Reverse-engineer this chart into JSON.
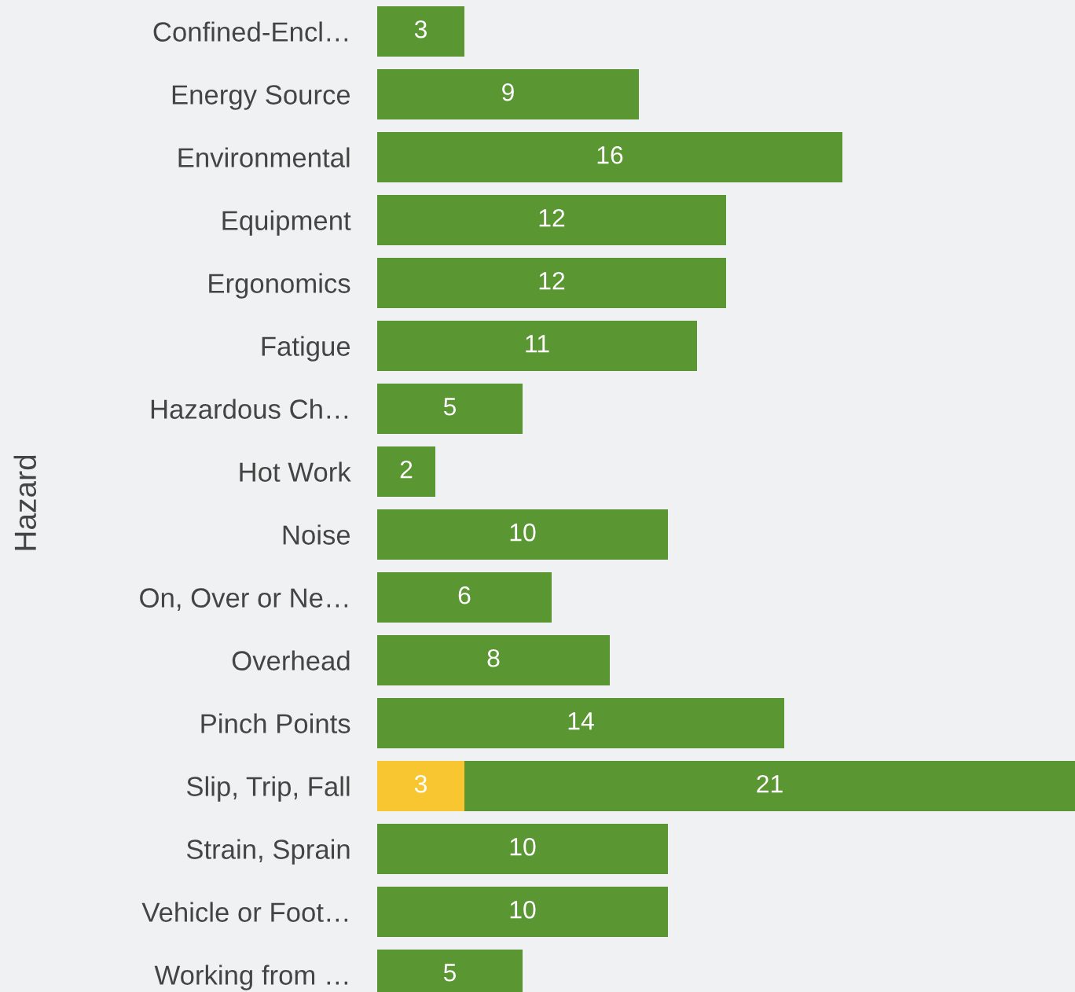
{
  "chart_data": {
    "type": "bar",
    "orientation": "horizontal",
    "stacked": true,
    "ylabel": "Hazard",
    "categories": [
      "Confined-Encl…",
      "Energy Source",
      "Environmental",
      "Equipment",
      "Ergonomics",
      "Fatigue",
      "Hazardous Ch…",
      "Hot Work",
      "Noise",
      "On, Over or Ne…",
      "Overhead",
      "Pinch Points",
      "Slip, Trip, Fall",
      "Strain, Sprain",
      "Vehicle or Foot…",
      "Working from …"
    ],
    "series": [
      {
        "color": "#f8c630",
        "values": [
          null,
          null,
          null,
          null,
          null,
          null,
          null,
          null,
          null,
          null,
          null,
          null,
          3,
          null,
          null,
          null
        ]
      },
      {
        "color": "#5a9632",
        "values": [
          3,
          9,
          16,
          12,
          12,
          11,
          5,
          2,
          10,
          6,
          8,
          14,
          21,
          10,
          10,
          5
        ]
      }
    ],
    "xlim": [
      0,
      24
    ],
    "tick_labels": "y",
    "data_labels": true,
    "grid": false,
    "legend": false
  }
}
